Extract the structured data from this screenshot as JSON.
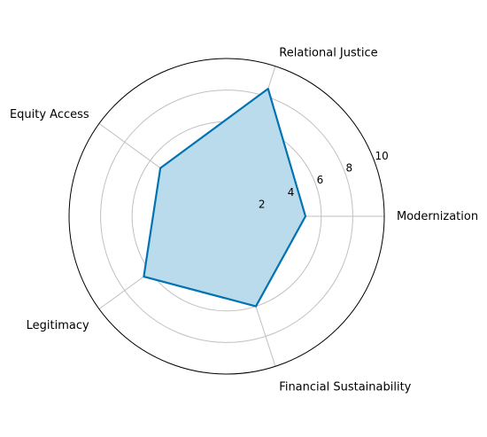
{
  "chart_data": {
    "type": "radar",
    "categories": [
      "Modernization",
      "Relational Justice",
      "Equity Access",
      "Legitimacy",
      "Financial Sustainability"
    ],
    "series": [
      {
        "values": [
          5.0,
          8.5,
          5.2,
          6.5,
          6.0
        ]
      }
    ],
    "radial_ticks": [
      "2",
      "4",
      "6",
      "8",
      "10"
    ],
    "rlim": [
      0,
      10
    ],
    "grid": true,
    "colors": {
      "line": "#0173b2",
      "fill": "#b9dbec",
      "grid": "#c0c0c0",
      "outer_circle": "#000000"
    }
  }
}
